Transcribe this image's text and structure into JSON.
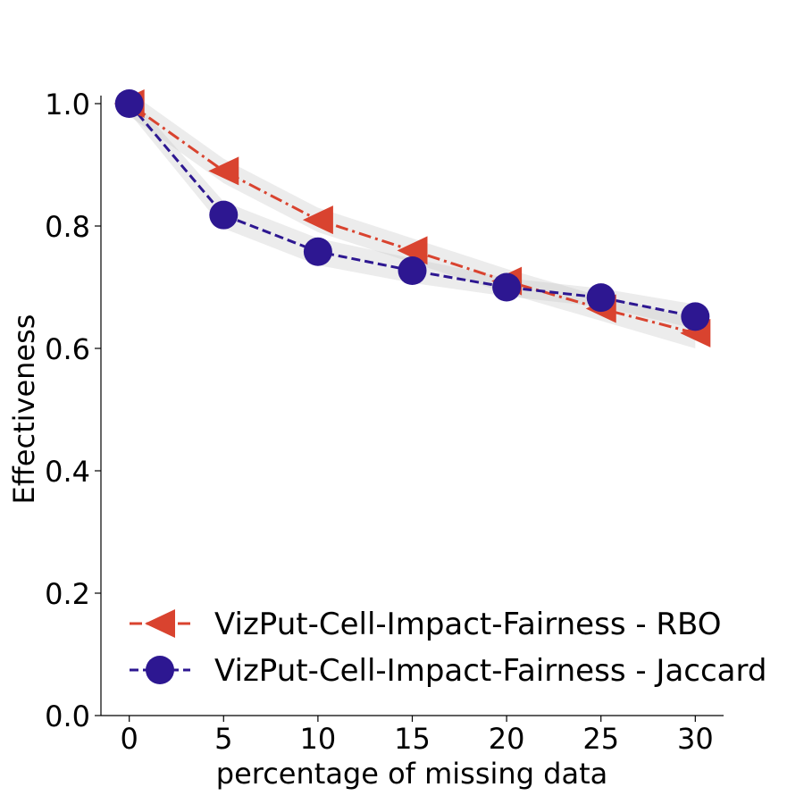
{
  "chart_data": {
    "type": "line",
    "xlabel": "percentage of missing data",
    "ylabel": "Effectiveness",
    "xlim": [
      -1.5,
      31.5
    ],
    "ylim": [
      0.0,
      1.0
    ],
    "x_ticks": [
      0,
      5,
      10,
      15,
      20,
      25,
      30
    ],
    "y_ticks": [
      0.0,
      0.2,
      0.4,
      0.6,
      0.8,
      1.0
    ],
    "x_tick_labels": [
      "0",
      "5",
      "10",
      "15",
      "20",
      "25",
      "30"
    ],
    "y_tick_labels": [
      "0.0",
      "0.2",
      "0.4",
      "0.6",
      "0.8",
      "1.0"
    ],
    "grid": false,
    "legend_position": "bottom-right",
    "x": [
      0,
      5,
      10,
      15,
      20,
      25,
      30
    ],
    "series": [
      {
        "name": "VizPut-Cell-Impact-Fairness - RBO",
        "values": [
          1.0,
          0.89,
          0.81,
          0.76,
          0.71,
          0.665,
          0.625
        ],
        "color": "#d9432f",
        "marker": "triangle-left",
        "line_style": "dash-dot",
        "band": [
          0.02,
          0.02,
          0.02,
          0.02,
          0.02,
          0.02,
          0.025
        ]
      },
      {
        "name": "VizPut-Cell-Impact-Fairness - Jaccard",
        "values": [
          1.0,
          0.818,
          0.758,
          0.727,
          0.7,
          0.683,
          0.652
        ],
        "color": "#2d1791",
        "marker": "circle",
        "line_style": "dashed",
        "band": [
          0.015,
          0.022,
          0.022,
          0.02,
          0.015,
          0.015,
          0.02
        ]
      }
    ]
  }
}
